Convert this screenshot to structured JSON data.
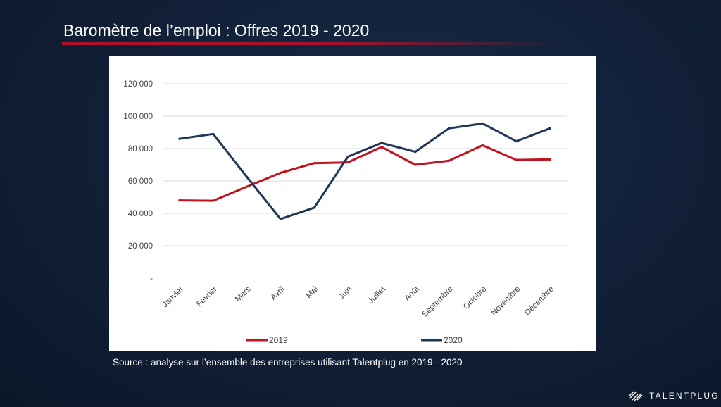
{
  "slide": {
    "title": "Baromètre de l’emploi : Offres 2019 - 2020",
    "source": "Source : analyse sur l’ensemble des entreprises utilisant Talentplug en 2019 - 2020",
    "brand": "TALENTPLUG",
    "brand_icon": "talentplug-logo-icon"
  },
  "colors": {
    "accent_rule": "#b0102a",
    "series_2019": "#c0121f",
    "series_2020": "#1f3657"
  },
  "chart_data": {
    "type": "line",
    "title": "",
    "xlabel": "",
    "ylabel": "",
    "ylim": [
      0,
      120000
    ],
    "yticks": [
      0,
      20000,
      40000,
      60000,
      80000,
      100000,
      120000
    ],
    "ytick_labels": [
      "-",
      "20 000",
      "40 000",
      "60 000",
      "80 000",
      "100 000",
      "120 000"
    ],
    "grid": true,
    "legend_position": "bottom",
    "categories": [
      "Janvier",
      "Fevrier",
      "Mars",
      "Avril",
      "Mai",
      "Juin",
      "Juillet",
      "Août",
      "Septembre",
      "Octobre",
      "Novembre",
      "Décembre"
    ],
    "series": [
      {
        "name": "2019",
        "color": "#c0121f",
        "values": [
          48000,
          47800,
          56500,
          65000,
          71000,
          71500,
          81000,
          70000,
          72500,
          82000,
          73000,
          73300
        ]
      },
      {
        "name": "2020",
        "color": "#1f3657",
        "values": [
          86000,
          89000,
          62500,
          36500,
          43500,
          75000,
          83500,
          78000,
          92500,
          95500,
          84500,
          92500
        ]
      }
    ]
  }
}
